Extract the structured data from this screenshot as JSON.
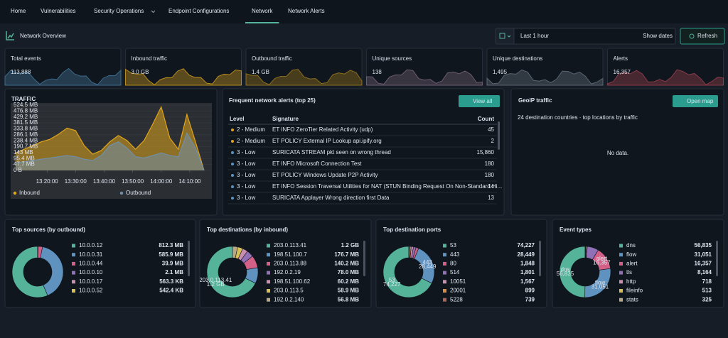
{
  "nav": {
    "items": [
      "Home",
      "Vulnerabilities",
      "Security Operations",
      "Endpoint Configurations",
      "Network",
      "Network Alerts"
    ],
    "active": 4
  },
  "header": {
    "title": "Network Overview",
    "time_range": "Last 1 hour",
    "show_dates": "Show dates",
    "refresh": "Refresh"
  },
  "stats": [
    {
      "label": "Total events",
      "value": "113,888",
      "color": "#5b8bb0"
    },
    {
      "label": "Inbound traffic",
      "value": "3.0 GB",
      "color": "#d36086"
    },
    {
      "label": "Outbound traffic",
      "value": "1.4 GB",
      "color": "#dfe5ef"
    },
    {
      "label": "Unique sources",
      "value": "138",
      "color": "#dfe5ef"
    },
    {
      "label": "Unique destinations",
      "value": "1,495",
      "color": "#dfe5ef"
    },
    {
      "label": "Alerts",
      "value": "16,357",
      "color": "#e7664c"
    }
  ],
  "traffic": {
    "type": "line",
    "fill": true,
    "title": "TRAFFIC",
    "x": [
      "13:09",
      "13:12",
      "13:15",
      "13:18",
      "13:21",
      "13:24",
      "13:27",
      "13:30",
      "13:33",
      "13:36",
      "13:39",
      "13:42",
      "13:45",
      "13:48",
      "13:51",
      "13:54",
      "13:57",
      "14:00",
      "14:03",
      "14:06",
      "14:09",
      "14:12",
      "14:15"
    ],
    "xlim": [
      "13:09",
      "14:15"
    ],
    "xticks": [
      {
        "value": "13:20",
        "label": "13:20:00"
      },
      {
        "value": "13:30",
        "label": "13:30:00"
      },
      {
        "value": "13:40",
        "label": "13:40:00"
      },
      {
        "value": "13:50",
        "label": "13:50:00"
      },
      {
        "value": "14:00",
        "label": "14:00:00"
      },
      {
        "value": "14:10",
        "label": "14:10:00"
      }
    ],
    "ylim": [
      0,
      524.5
    ],
    "yticks": [
      {
        "value": 0,
        "label": "0 B"
      },
      {
        "value": 47.7,
        "label": "47.7 MB"
      },
      {
        "value": 95.4,
        "label": "95.4 MB"
      },
      {
        "value": 143,
        "label": "143 MB"
      },
      {
        "value": 190.7,
        "label": "190.7 MB"
      },
      {
        "value": 238.4,
        "label": "238.4 MB"
      },
      {
        "value": 286.1,
        "label": "286.1 MB"
      },
      {
        "value": 333.8,
        "label": "333.8 MB"
      },
      {
        "value": 381.5,
        "label": "381.5 MB"
      },
      {
        "value": 429.2,
        "label": "429.2 MB"
      },
      {
        "value": 476.8,
        "label": "476.8 MB"
      },
      {
        "value": 524.5,
        "label": "524.5 MB"
      }
    ],
    "series": [
      {
        "name": "Inbound",
        "color": "#e0a41b",
        "values": [
          140,
          170,
          200,
          230,
          250,
          290,
          340,
          320,
          200,
          130,
          160,
          230,
          280,
          240,
          170,
          240,
          370,
          510,
          260,
          170,
          450,
          230,
          0
        ]
      },
      {
        "name": "Outbound",
        "color": "#6f8fa8",
        "values": [
          60,
          70,
          80,
          90,
          100,
          110,
          120,
          110,
          90,
          80,
          120,
          200,
          230,
          180,
          110,
          100,
          120,
          140,
          120,
          110,
          300,
          180,
          0
        ]
      }
    ]
  },
  "alerts": {
    "title": "Frequent network alerts (top 25)",
    "button": "View all",
    "columns": [
      "Level",
      "Signature",
      "Count"
    ],
    "rows": [
      {
        "level": "2 - Medium",
        "signature": "ET INFO ZeroTier Related Activity (udp)",
        "count": "45",
        "color": "#e0a41b"
      },
      {
        "level": "2 - Medium",
        "signature": "ET POLICY External IP Lookup api.ipify.org",
        "count": "2",
        "color": "#e0a41b"
      },
      {
        "level": "3 - Low",
        "signature": "SURICATA STREAM pkt seen on wrong thread",
        "count": "15,860",
        "color": "#6092c0"
      },
      {
        "level": "3 - Low",
        "signature": "ET INFO Microsoft Connection Test",
        "count": "180",
        "color": "#6092c0"
      },
      {
        "level": "3 - Low",
        "signature": "ET POLICY Windows Update P2P Activity",
        "count": "180",
        "color": "#6092c0"
      },
      {
        "level": "3 - Low",
        "signature": "ET INFO Session Traversal Utilities for NAT (STUN Binding Request On Non-Standard Hi...",
        "count": "14",
        "color": "#6092c0"
      },
      {
        "level": "3 - Low",
        "signature": "SURICATA Applayer Wrong direction first Data",
        "count": "13",
        "color": "#6092c0"
      }
    ]
  },
  "geoip": {
    "title": "GeoIP traffic",
    "button": "Open map",
    "subtitle": "24 destination countries · top locations by traffic",
    "empty": "No data."
  },
  "donuts": [
    {
      "type": "pie",
      "title": "Top sources (by outbound)",
      "slice_labels": false,
      "names": [
        "10.0.0.12",
        "10.0.0.31",
        "10.0.0.44",
        "10.0.0.10",
        "10.0.0.17",
        "10.0.0.52"
      ],
      "values": [
        812.3,
        585.9,
        39.9,
        2.1,
        0.5633,
        0.5424
      ],
      "value_labels": [
        "812.3 MB",
        "585.9 MB",
        "39.9 MB",
        "2.1 MB",
        "563.3 KB",
        "542.4 KB"
      ],
      "colors": [
        "#54b399",
        "#6092c0",
        "#d36086",
        "#9170b8",
        "#ca8eae",
        "#d6bf57"
      ]
    },
    {
      "type": "pie",
      "title": "Top destinations (by inbound)",
      "slice_labels": true,
      "names": [
        "203.0.113.41",
        "198.51.100.7",
        "203.0.113.88",
        "192.0.2.19",
        "198.51.100.62",
        "203.0.113.5",
        "192.0.2.140"
      ],
      "values": [
        1200,
        176.7,
        140.2,
        78,
        60.2,
        58.9,
        56.8
      ],
      "value_labels": [
        "1.2 GB",
        "176.7 MB",
        "140.2 MB",
        "78.0 MB",
        "60.2 MB",
        "58.9 MB",
        "56.8 MB"
      ],
      "colors": [
        "#54b399",
        "#6092c0",
        "#d36086",
        "#9170b8",
        "#ca8eae",
        "#d6bf57",
        "#b9a888"
      ]
    },
    {
      "type": "pie",
      "title": "Top destination ports",
      "slice_labels": true,
      "names": [
        "53",
        "443",
        "80",
        "514",
        "10051",
        "20001",
        "5228"
      ],
      "values": [
        74227,
        28449,
        1848,
        1801,
        1567,
        899,
        739
      ],
      "value_labels": [
        "74,227",
        "28,449",
        "1,848",
        "1,801",
        "1,567",
        "899",
        "739"
      ],
      "colors": [
        "#54b399",
        "#6092c0",
        "#d36086",
        "#9170b8",
        "#ca8eae",
        "#da8b45",
        "#aa6556"
      ]
    },
    {
      "type": "pie",
      "title": "Event types",
      "slice_labels": true,
      "names": [
        "dns",
        "flow",
        "alert",
        "tls",
        "http",
        "fileinfo",
        "stats"
      ],
      "values": [
        56835,
        31051,
        16357,
        8164,
        718,
        513,
        325
      ],
      "value_labels": [
        "56,835",
        "31,051",
        "16,357",
        "8,164",
        "718",
        "513",
        "325"
      ],
      "colors": [
        "#54b399",
        "#6092c0",
        "#d36086",
        "#9170b8",
        "#ca8eae",
        "#d6bf57",
        "#b9a888"
      ]
    }
  ]
}
